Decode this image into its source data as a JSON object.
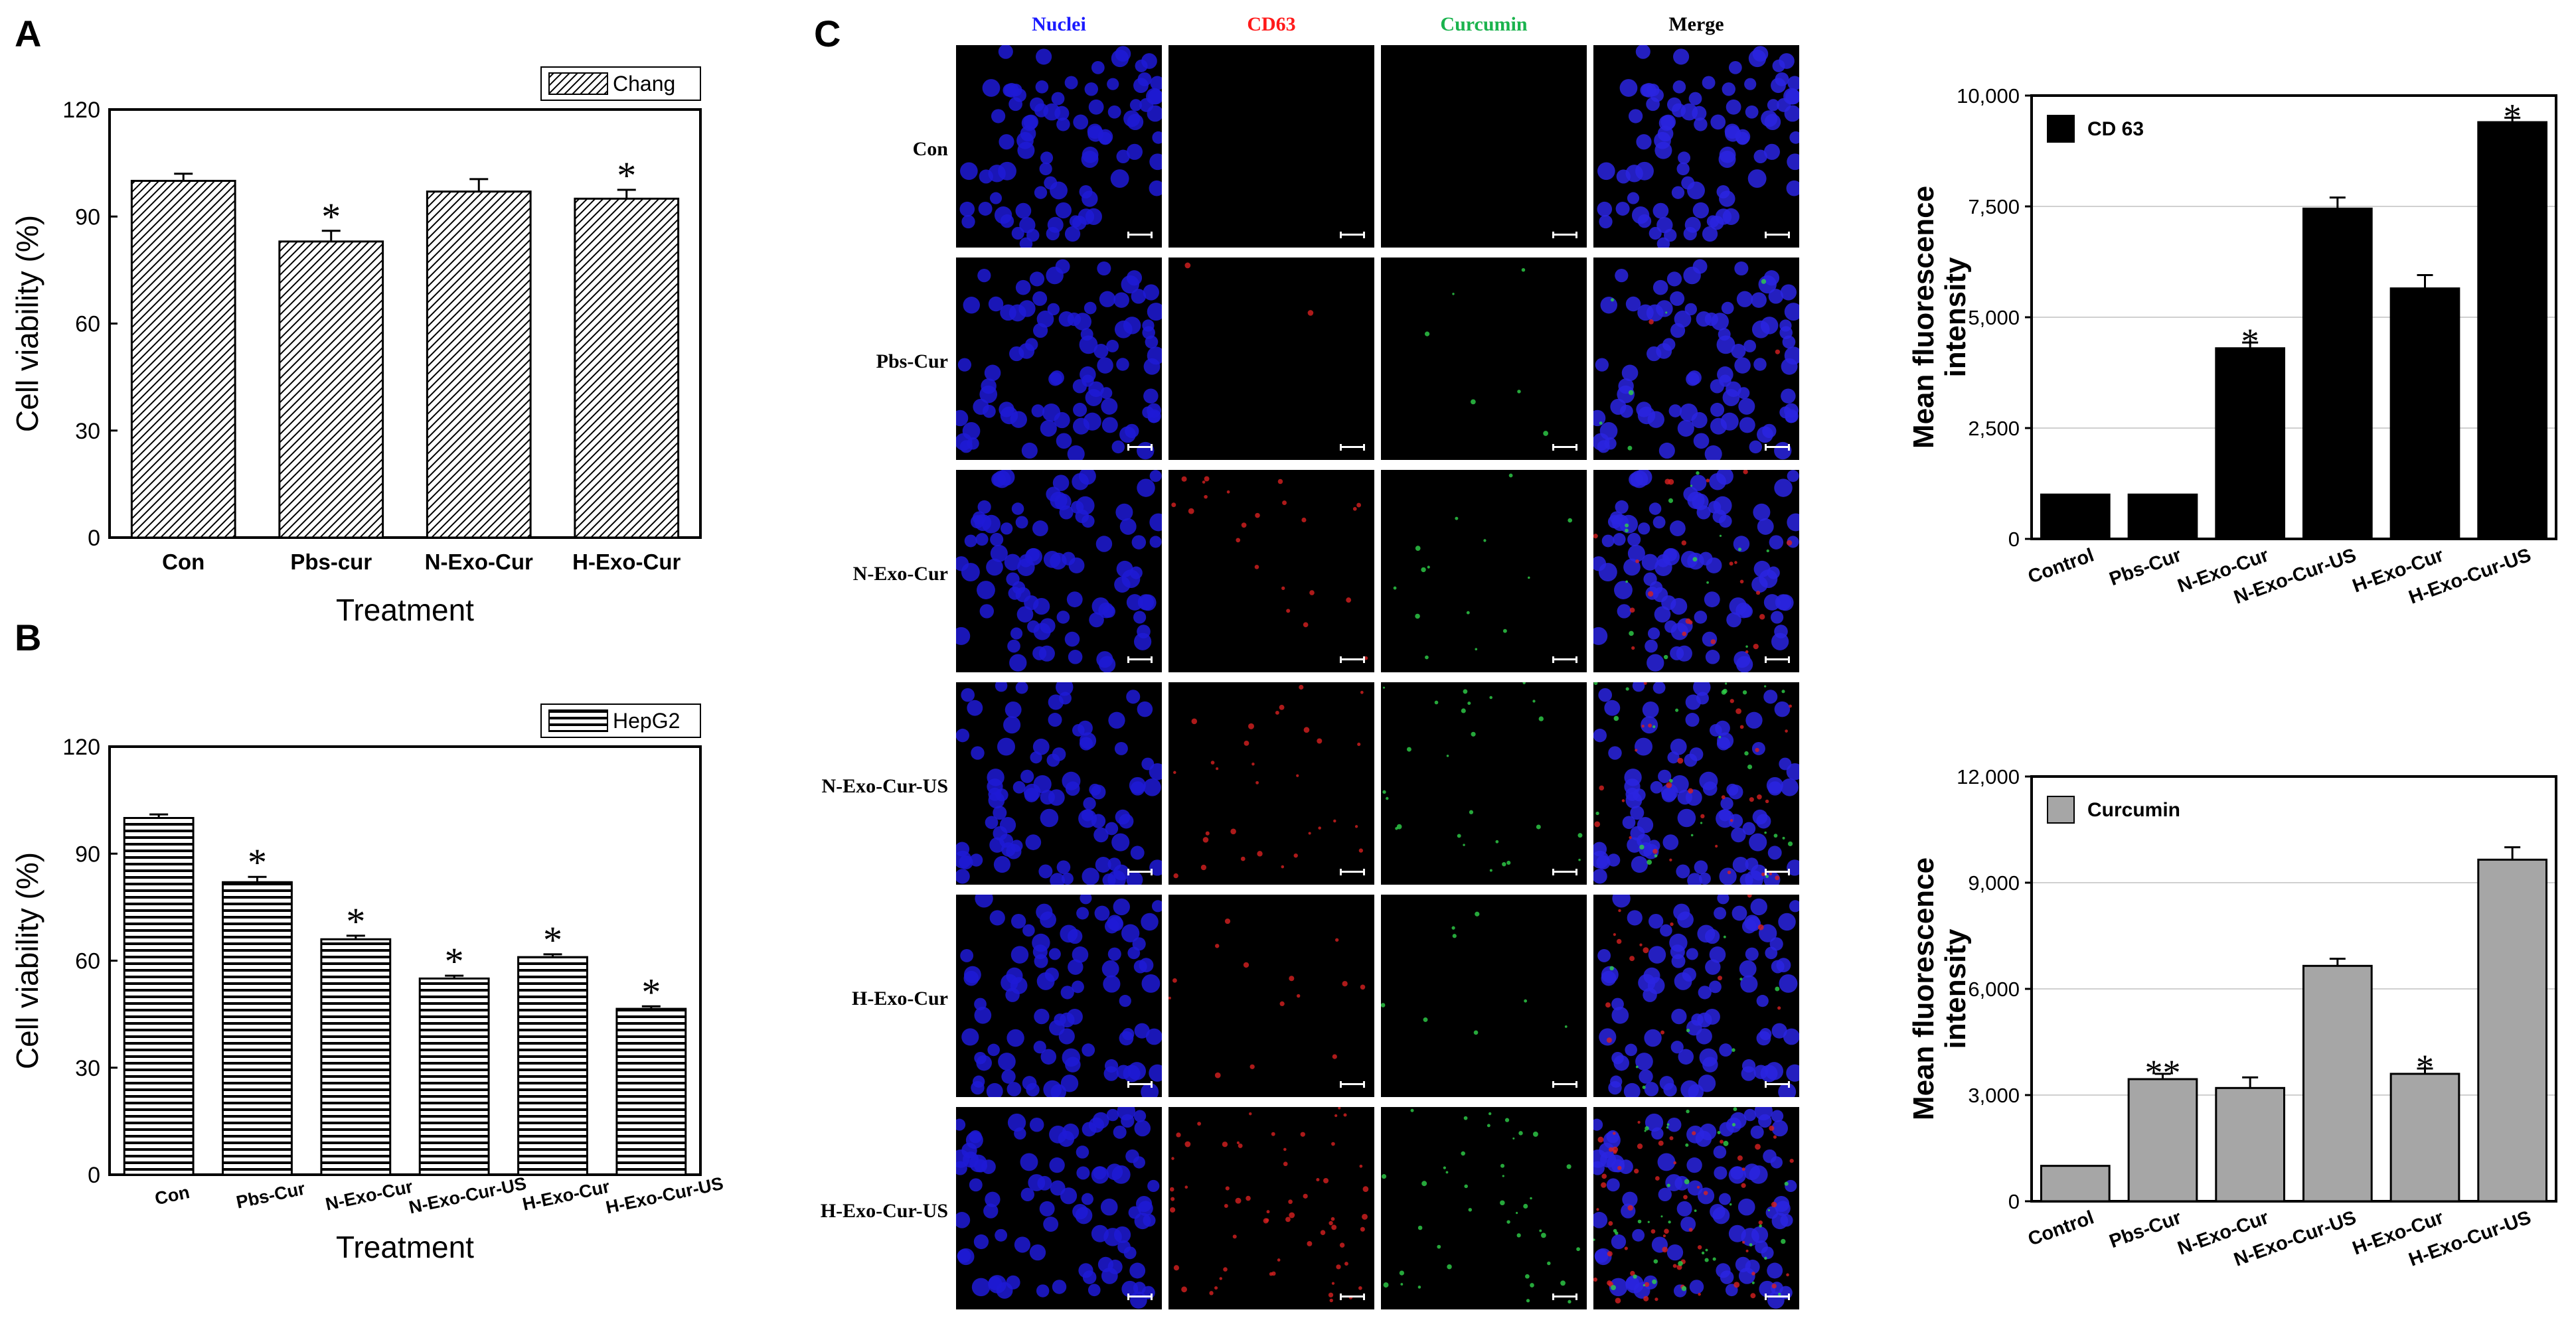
{
  "panels": {
    "A": "A",
    "B": "B",
    "C": "C"
  },
  "microscopy": {
    "columns": [
      {
        "label": "Nuclei",
        "color": "#1a1aff"
      },
      {
        "label": "CD63",
        "color": "#ff1a1a"
      },
      {
        "label": "Curcumin",
        "color": "#1ab34d"
      },
      {
        "label": "Merge",
        "color": "#000000"
      }
    ],
    "rows": [
      "Con",
      "Pbs-Cur",
      "N-Exo-Cur",
      "N-Exo-Cur-US",
      "H-Exo-Cur",
      "H-Exo-Cur-US"
    ]
  },
  "chart_data": [
    {
      "id": "A",
      "type": "bar",
      "legend": "Chang",
      "legend_position": "top-right",
      "categories": [
        "Con",
        "Pbs-cur",
        "N-Exo-Cur",
        "H-Exo-Cur"
      ],
      "values": [
        100,
        83,
        97,
        95
      ],
      "errors": [
        2,
        3,
        3.5,
        2.5
      ],
      "annotations": [
        "",
        "*",
        "",
        "*"
      ],
      "xlabel": "Treatment",
      "ylabel": "Cell viability (%)",
      "ylim": [
        0,
        120
      ],
      "yticks": [
        0,
        30,
        60,
        90,
        120
      ],
      "ytick_labels": [
        "0",
        "30",
        "60",
        "90",
        "120"
      ],
      "pattern": "diagonal",
      "grid": false
    },
    {
      "id": "B",
      "type": "bar",
      "legend": "HepG2",
      "legend_position": "top-right",
      "categories": [
        "Con",
        "Pbs-Cur",
        "N-Exo-Cur",
        "N-Exo-Cur-US",
        "H-Exo-Cur",
        "H-Exo-Cur-US"
      ],
      "values": [
        100,
        82,
        66,
        55,
        61,
        46.5
      ],
      "errors": [
        1,
        1.5,
        1,
        0.8,
        0.8,
        0.7
      ],
      "annotations": [
        "",
        "*",
        "*",
        "*",
        "*",
        "*"
      ],
      "xlabel": "Treatment",
      "ylabel": "Cell viability (%)",
      "ylim": [
        0,
        120
      ],
      "yticks": [
        0,
        30,
        60,
        90,
        120
      ],
      "ytick_labels": [
        "0",
        "30",
        "60",
        "90",
        "120"
      ],
      "pattern": "horizontal",
      "grid": false
    },
    {
      "id": "C-top",
      "type": "bar",
      "legend": "CD 63",
      "legend_position": "top-left",
      "categories": [
        "Control",
        "Pbs-Cur",
        "N-Exo-Cur",
        "N-Exo-Cur-US",
        "H-Exo-Cur",
        "H-Exo-Cur-US"
      ],
      "values": [
        1000,
        1000,
        4300,
        7450,
        5650,
        9400
      ],
      "errors": [
        0,
        0,
        130,
        250,
        300,
        100
      ],
      "annotations": [
        "",
        "",
        "*",
        "",
        "",
        "*"
      ],
      "xlabel": "",
      "ylabel": "Mean fluorescence intensity",
      "ylim": [
        0,
        10000
      ],
      "yticks": [
        0,
        2500,
        5000,
        7500,
        10000
      ],
      "ytick_labels": [
        "0",
        "2,500",
        "5,000",
        "7,500",
        "10,000"
      ],
      "color": "#000000",
      "grid": true
    },
    {
      "id": "C-bottom",
      "type": "bar",
      "legend": "Curcumin",
      "legend_position": "top-left",
      "categories": [
        "Control",
        "Pbs-Cur",
        "N-Exo-Cur",
        "N-Exo-Cur-US",
        "H-Exo-Cur",
        "H-Exo-Cur-US"
      ],
      "values": [
        1000,
        3450,
        3200,
        6650,
        3600,
        9650
      ],
      "errors": [
        0,
        150,
        300,
        200,
        150,
        350
      ],
      "annotations": [
        "",
        "**",
        "",
        "",
        "*",
        ""
      ],
      "xlabel": "",
      "ylabel": "Mean fluorescence intensity",
      "ylim": [
        0,
        12000
      ],
      "yticks": [
        0,
        3000,
        6000,
        9000,
        12000
      ],
      "ytick_labels": [
        "0",
        "3,000",
        "6,000",
        "9,000",
        "12,000"
      ],
      "color": "#a6a6a6",
      "grid": true
    }
  ]
}
